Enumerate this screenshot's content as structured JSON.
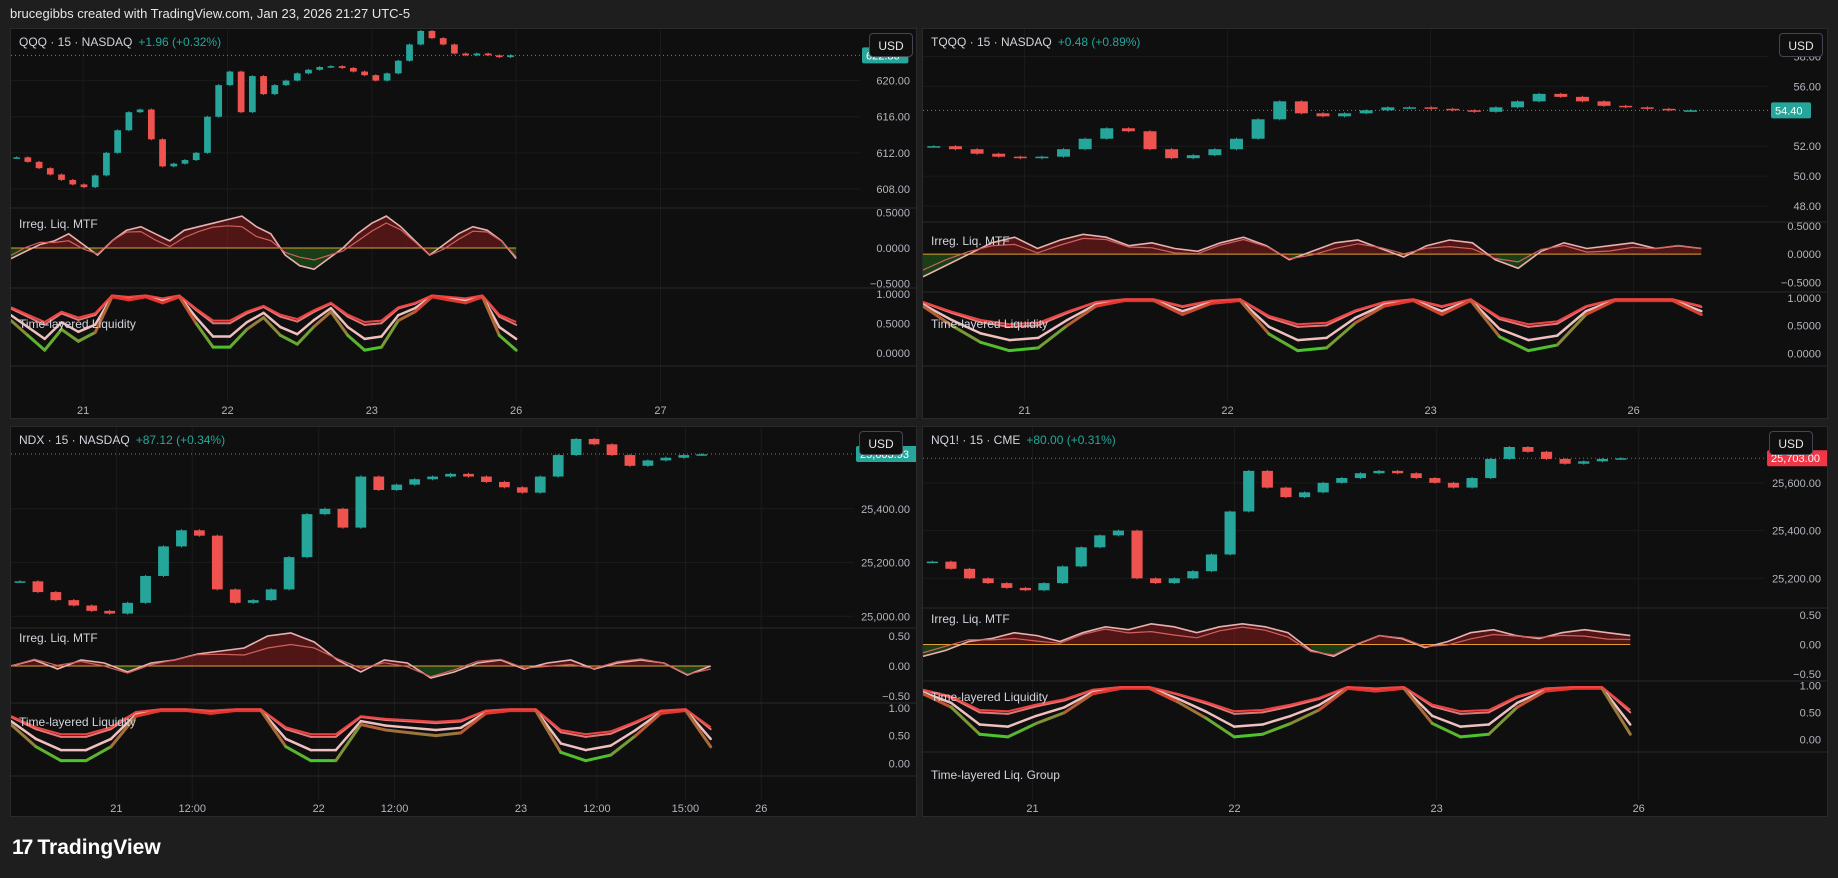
{
  "header": {
    "attribution": "brucegibbs created with TradingView.com, Jan 23, 2026 21:27 UTC-5"
  },
  "footer": {
    "logo_glyph": "17",
    "brand": "TradingView"
  },
  "colors": {
    "up": "#26a69a",
    "down": "#ef5350",
    "background": "#0f0f0f",
    "frame": "#1e1e1e"
  },
  "chart_data": [
    {
      "type": "candlestick",
      "symbol": "QQQ",
      "interval": "15",
      "exchange": "NASDAQ",
      "title_line": "QQQ · 15 · NASDAQ",
      "change": "+1.96 (+0.32%)",
      "currency": "USD",
      "last_price": "622.80",
      "price_ticks": [
        "620.00",
        "616.00",
        "612.00",
        "608.00"
      ],
      "price_range": [
        606,
        623.5
      ],
      "osc1_ticks": [
        "0.5000",
        "0.0000",
        "−0.5000"
      ],
      "osc2_ticks": [
        "1.0000",
        "0.5000",
        "0.0000"
      ],
      "indicator_labels": [
        "Irreg. Liq. MTF",
        "Time-layered Liquidity"
      ],
      "x_labels": [
        "21",
        "22",
        "23",
        "26",
        "27"
      ],
      "price_series": [
        611.5,
        611.0,
        610.3,
        609.6,
        609.0,
        608.5,
        608.2,
        609.5,
        612.0,
        614.5,
        616.5,
        616.8,
        613.5,
        610.5,
        610.8,
        611.2,
        612.0,
        616.0,
        619.5,
        621.0,
        616.5,
        620.5,
        618.5,
        619.5,
        620.0,
        620.8,
        621.2,
        621.5,
        621.6,
        621.4,
        621.0,
        620.6,
        620.0,
        620.8,
        622.2,
        624.0,
        625.5,
        624.7,
        624.0,
        623.0,
        622.8,
        623.0,
        622.8,
        622.6,
        622.8
      ],
      "price_x_extent": 0.595,
      "osc1_series": [
        -0.15,
        -0.05,
        0.05,
        0.1,
        0.2,
        0.05,
        -0.1,
        0.1,
        0.25,
        0.3,
        0.2,
        0.1,
        0.25,
        0.3,
        0.35,
        0.4,
        0.45,
        0.3,
        0.2,
        -0.1,
        -0.25,
        -0.3,
        -0.15,
        0.0,
        0.2,
        0.35,
        0.45,
        0.3,
        0.1,
        -0.1,
        0.05,
        0.2,
        0.3,
        0.25,
        0.1,
        -0.15
      ],
      "osc1_range": [
        -0.55,
        0.55
      ],
      "osc2_series": [
        0.55,
        0.3,
        0.05,
        0.4,
        0.2,
        0.35,
        0.95,
        0.9,
        0.95,
        0.85,
        0.95,
        0.5,
        0.1,
        0.1,
        0.4,
        0.6,
        0.3,
        0.15,
        0.45,
        0.7,
        0.3,
        0.05,
        0.1,
        0.55,
        0.7,
        0.95,
        0.9,
        0.85,
        0.95,
        0.3,
        0.05
      ],
      "osc2_range": [
        -0.1,
        1.05
      ]
    },
    {
      "type": "candlestick",
      "symbol": "TQQQ",
      "interval": "15",
      "exchange": "NASDAQ",
      "title_line": "TQQQ · 15 · NASDAQ",
      "change": "+0.48 (+0.89%)",
      "currency": "USD",
      "last_price": "54.40",
      "price_ticks": [
        "58.00",
        "56.00",
        "52.00",
        "50.00",
        "48.00"
      ],
      "price_range": [
        47,
        58.5
      ],
      "osc1_ticks": [
        "0.5000",
        "0.0000",
        "−0.5000"
      ],
      "osc2_ticks": [
        "1.0000",
        "0.5000",
        "0.0000"
      ],
      "indicator_labels": [
        "Irreg. Liq. MTF",
        "Time-layered Liquidity"
      ],
      "x_labels": [
        "21",
        "22",
        "23",
        "26"
      ],
      "price_series": [
        52.0,
        51.8,
        51.5,
        51.3,
        51.2,
        51.3,
        51.8,
        52.5,
        53.2,
        53.0,
        51.8,
        51.2,
        51.4,
        51.8,
        52.5,
        53.8,
        55.0,
        54.2,
        54.0,
        54.2,
        54.4,
        54.6,
        54.6,
        54.5,
        54.4,
        54.3,
        54.6,
        55.0,
        55.5,
        55.3,
        55.0,
        54.7,
        54.6,
        54.5,
        54.4,
        54.4
      ],
      "price_x_extent": 0.92,
      "osc1_series": [
        -0.4,
        -0.2,
        0.0,
        0.2,
        0.3,
        0.1,
        0.25,
        0.35,
        0.3,
        0.15,
        0.2,
        0.1,
        0.05,
        0.2,
        0.3,
        0.15,
        -0.1,
        0.05,
        0.2,
        0.25,
        0.1,
        -0.05,
        0.15,
        0.25,
        0.2,
        -0.1,
        -0.25,
        0.05,
        0.2,
        0.1,
        0.15,
        0.2,
        0.1,
        0.15,
        0.1
      ],
      "osc1_range": [
        -0.65,
        0.55
      ],
      "osc2_series": [
        0.85,
        0.5,
        0.2,
        0.05,
        0.1,
        0.5,
        0.85,
        0.95,
        0.95,
        0.7,
        0.9,
        0.95,
        0.35,
        0.05,
        0.1,
        0.55,
        0.85,
        0.95,
        0.7,
        0.95,
        0.3,
        0.05,
        0.15,
        0.7,
        0.95,
        0.95,
        0.95,
        0.7
      ],
      "osc2_range": [
        -0.1,
        1.05
      ]
    },
    {
      "type": "candlestick",
      "symbol": "NDX",
      "interval": "15",
      "exchange": "NASDAQ",
      "title_line": "NDX · 15 · NASDAQ",
      "change": "+87.12 (+0.34%)",
      "currency": "USD",
      "last_price": "25,603.93",
      "price_ticks": [
        "25,400.00",
        "25,200.00",
        "25,000.00"
      ],
      "price_range": [
        24960,
        25630
      ],
      "osc1_ticks": [
        "0.50",
        "0.00",
        "−0.50"
      ],
      "osc2_ticks": [
        "1.00",
        "0.50",
        "0.00"
      ],
      "indicator_labels": [
        "Irreg. Liq. MTF",
        "Time-layered Liquidity"
      ],
      "x_labels": [
        "21",
        "12:00",
        "22",
        "12:00",
        "23",
        "12:00",
        "15:00",
        "26"
      ],
      "price_series": [
        25130,
        25090,
        25060,
        25040,
        25020,
        25010,
        25050,
        25150,
        25260,
        25320,
        25300,
        25100,
        25050,
        25060,
        25100,
        25220,
        25380,
        25400,
        25330,
        25520,
        25470,
        25490,
        25510,
        25520,
        25530,
        25520,
        25500,
        25480,
        25460,
        25520,
        25600,
        25660,
        25640,
        25600,
        25560,
        25580,
        25590,
        25600,
        25603
      ],
      "price_x_extent": 0.83,
      "osc1_series": [
        0.0,
        0.1,
        -0.05,
        0.1,
        0.05,
        -0.1,
        0.05,
        0.1,
        0.2,
        0.25,
        0.3,
        0.5,
        0.55,
        0.4,
        0.1,
        -0.1,
        0.1,
        0.05,
        -0.2,
        -0.1,
        0.05,
        0.1,
        -0.05,
        0.05,
        0.1,
        -0.05,
        0.05,
        0.1,
        0.05,
        -0.15,
        0.0
      ],
      "osc1_range": [
        -0.6,
        0.6
      ],
      "osc2_series": [
        0.7,
        0.3,
        0.05,
        0.05,
        0.3,
        0.85,
        0.95,
        0.95,
        0.9,
        0.95,
        0.95,
        0.3,
        0.05,
        0.05,
        0.7,
        0.6,
        0.55,
        0.5,
        0.55,
        0.9,
        0.95,
        0.95,
        0.2,
        0.05,
        0.15,
        0.5,
        0.9,
        0.95,
        0.3
      ],
      "osc2_range": [
        -0.1,
        1.05
      ]
    },
    {
      "type": "candlestick",
      "symbol": "NQ1!",
      "interval": "15",
      "exchange": "CME",
      "title_line": "NQ1! · 15 · CME",
      "change": "+80.00 (+0.31%)",
      "currency": "USD",
      "last_price": "25,703.00",
      "last_price_color": "#f23645",
      "price_ticks": [
        "25,600.00",
        "25,400.00",
        "25,200.00"
      ],
      "price_range": [
        25080,
        25750
      ],
      "osc1_ticks": [
        "0.50",
        "0.00",
        "−0.50"
      ],
      "osc2_ticks": [
        "1.00",
        "0.50",
        "0.00"
      ],
      "indicator_labels": [
        "Irreg. Liq. MTF",
        "Time-layered Liquidity",
        "Time-layered Liq. Group"
      ],
      "x_labels": [
        "21",
        "22",
        "23",
        "26"
      ],
      "price_series": [
        25270,
        25240,
        25200,
        25180,
        25160,
        25150,
        25180,
        25250,
        25330,
        25380,
        25400,
        25200,
        25180,
        25200,
        25230,
        25300,
        25480,
        25650,
        25580,
        25540,
        25560,
        25600,
        25620,
        25640,
        25650,
        25640,
        25620,
        25600,
        25580,
        25620,
        25700,
        25750,
        25730,
        25700,
        25680,
        25690,
        25700,
        25703
      ],
      "price_x_extent": 0.84,
      "osc1_series": [
        -0.2,
        -0.1,
        0.05,
        0.1,
        0.2,
        0.15,
        0.05,
        0.2,
        0.3,
        0.25,
        0.35,
        0.3,
        0.2,
        0.3,
        0.35,
        0.3,
        0.2,
        -0.1,
        -0.2,
        0.0,
        0.15,
        0.1,
        -0.05,
        0.05,
        0.2,
        0.25,
        0.15,
        0.1,
        0.2,
        0.25,
        0.2,
        0.15
      ],
      "osc1_range": [
        -0.6,
        0.6
      ],
      "osc2_series": [
        0.85,
        0.6,
        0.1,
        0.05,
        0.3,
        0.5,
        0.85,
        0.95,
        0.95,
        0.7,
        0.4,
        0.05,
        0.1,
        0.3,
        0.55,
        0.95,
        0.9,
        0.95,
        0.3,
        0.05,
        0.1,
        0.6,
        0.9,
        0.95,
        0.95,
        0.1
      ],
      "osc2_range": [
        -0.1,
        1.05
      ]
    }
  ]
}
